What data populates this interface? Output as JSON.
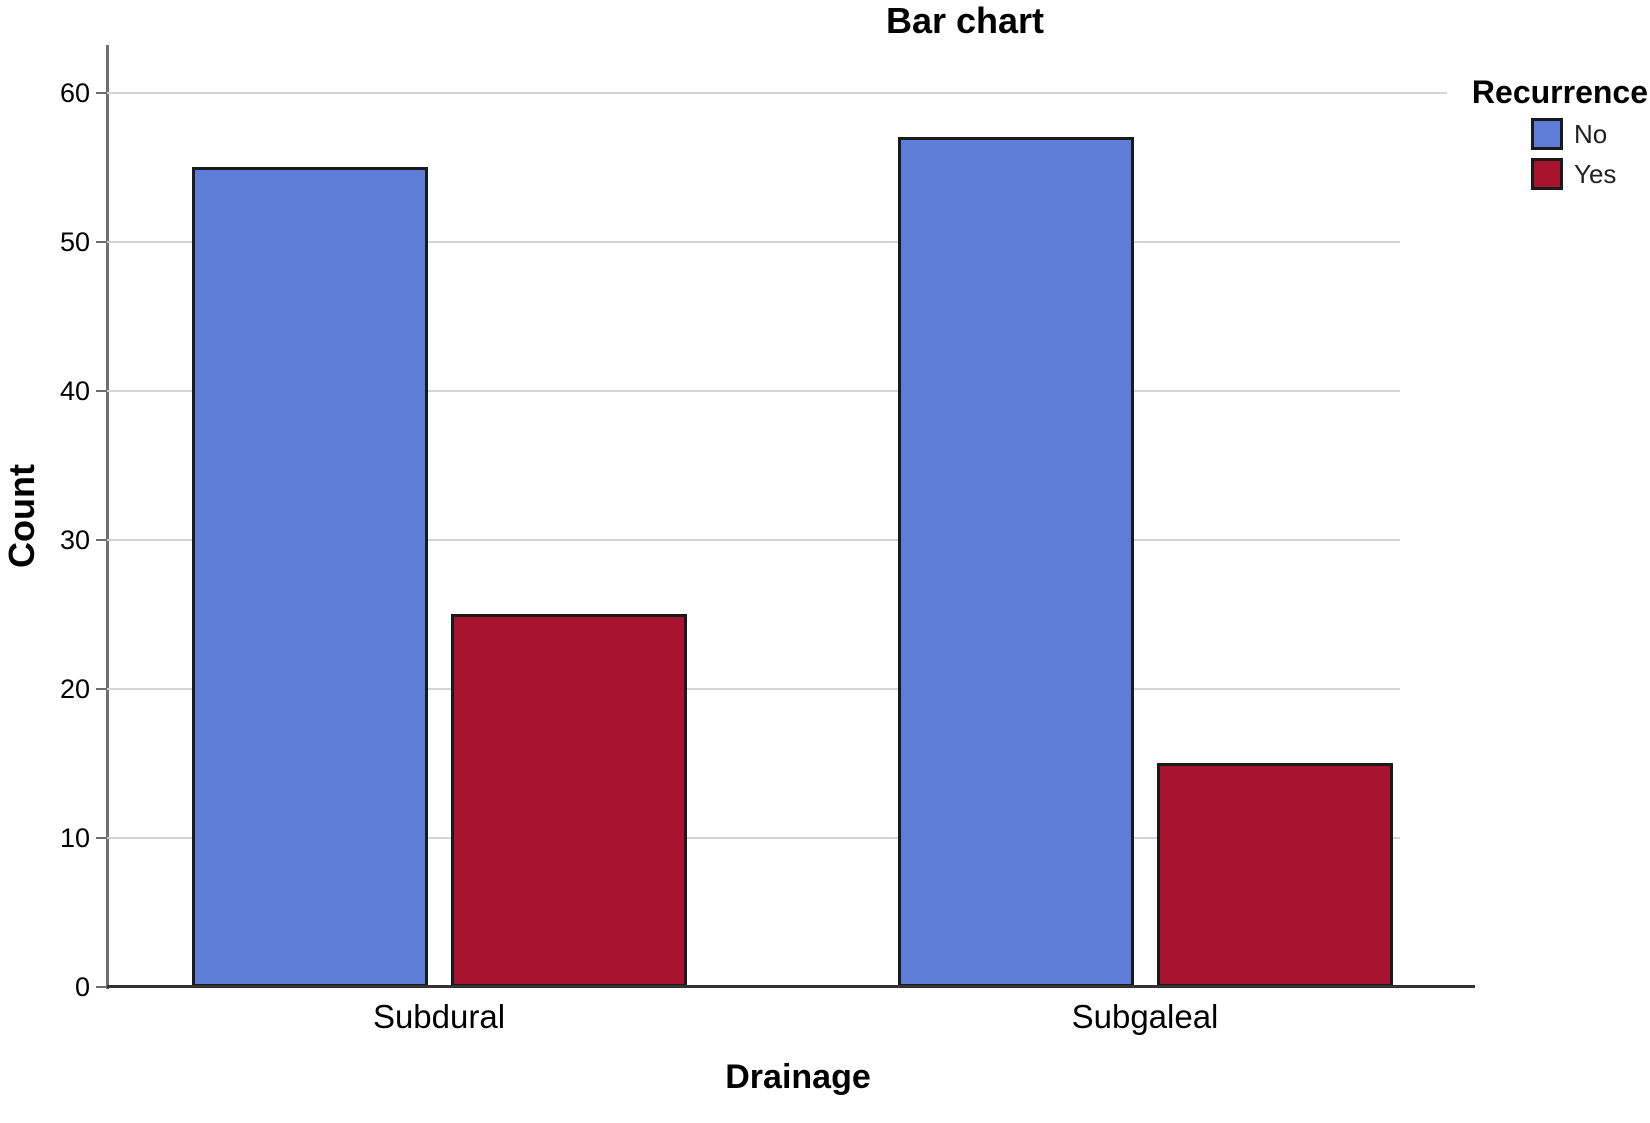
{
  "chart_data": {
    "type": "bar",
    "title": "Bar chart",
    "xlabel": "Drainage",
    "ylabel": "Count",
    "categories": [
      "Subdural",
      "Subgaleal"
    ],
    "series": [
      {
        "name": "No",
        "color": "#5E7DD8",
        "values": [
          55,
          57
        ]
      },
      {
        "name": "Yes",
        "color": "#A81430",
        "values": [
          25,
          15
        ]
      }
    ],
    "legend_title": "Recurrence",
    "legend_position": "top-right",
    "ylim": [
      0,
      63.2
    ],
    "yticks": [
      0,
      10,
      20,
      30,
      40,
      50,
      60
    ],
    "grid": true,
    "colors": {
      "gridline": "#d4d4d4",
      "y_axis": "#6e6e6e",
      "x_axis": "#333333",
      "bar_border": "#1a1a1a"
    }
  }
}
